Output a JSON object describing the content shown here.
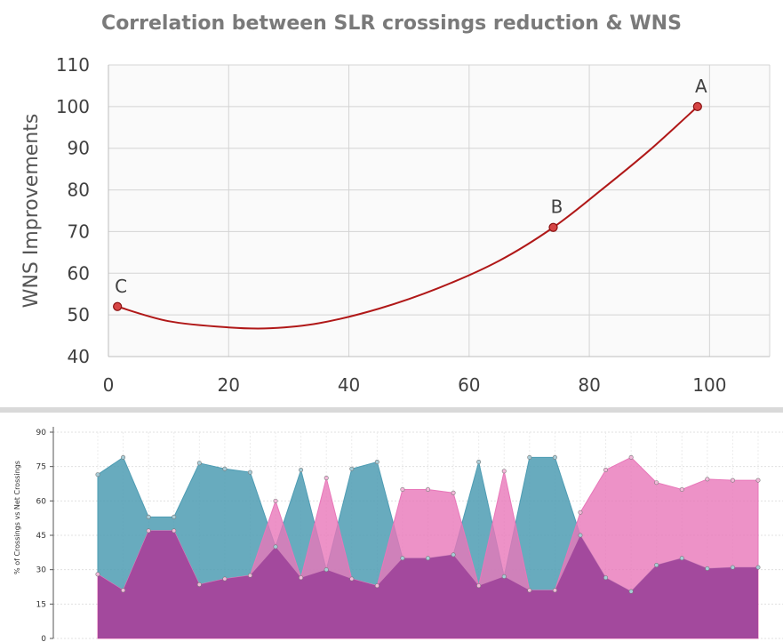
{
  "chart_data": [
    {
      "type": "line",
      "title": "Correlation between SLR crossings reduction & WNS",
      "ylabel": "WNS Improvements",
      "xlabel": "",
      "xlim": [
        0,
        110
      ],
      "ylim": [
        40,
        110
      ],
      "xticks": [
        0,
        20,
        40,
        60,
        80,
        100
      ],
      "yticks": [
        40,
        50,
        60,
        70,
        80,
        90,
        100,
        110
      ],
      "grid": true,
      "points": [
        {
          "label": "C",
          "x": 1.5,
          "y": 52
        },
        {
          "label": "B",
          "x": 74,
          "y": 71
        },
        {
          "label": "A",
          "x": 98,
          "y": 100
        }
      ],
      "curve": [
        [
          1.5,
          52
        ],
        [
          10,
          48.5
        ],
        [
          20,
          47
        ],
        [
          27,
          46.8
        ],
        [
          35,
          48.0
        ],
        [
          45,
          51.5
        ],
        [
          55,
          56.5
        ],
        [
          65,
          63.0
        ],
        [
          74,
          71
        ],
        [
          82,
          80.0
        ],
        [
          90,
          89.5
        ],
        [
          98,
          100
        ]
      ],
      "line_color": "#b01818",
      "marker_color": "#d64545"
    },
    {
      "type": "area",
      "ylabel": "% of Crossings vs Net Crossings",
      "ylim": [
        0,
        90
      ],
      "yticks": [
        0,
        15,
        30,
        45,
        60,
        75,
        90
      ],
      "grid": true,
      "x": [
        1,
        2,
        3,
        4,
        5,
        6,
        7,
        8,
        9,
        10,
        11,
        12,
        13,
        14,
        15,
        16,
        17,
        18,
        19,
        20,
        21,
        22,
        23,
        24,
        25,
        26,
        27
      ],
      "series": [
        {
          "name": "",
          "color": "#4e9cb3",
          "values": [
            71.5,
            79,
            53,
            53,
            76.5,
            74,
            72.5,
            40,
            73.5,
            30,
            74,
            77,
            35,
            35,
            36.5,
            77,
            27,
            79,
            79,
            45,
            26.5,
            20.5,
            32,
            35,
            30.5,
            31,
            31
          ]
        },
        {
          "name": "",
          "color": "#e877b9",
          "values": [
            28,
            21,
            47,
            47,
            23.5,
            26,
            27.5,
            60,
            26.5,
            70,
            26,
            23,
            65,
            65,
            63.5,
            23,
            73,
            21,
            21,
            55,
            73.5,
            79,
            68,
            65,
            69.5,
            69,
            69
          ]
        }
      ]
    }
  ]
}
